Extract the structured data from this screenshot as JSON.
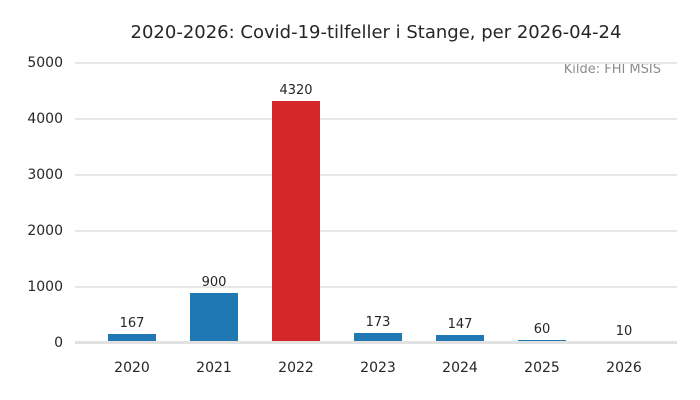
{
  "figure": {
    "title": "2020-2026: Covid-19-tilfeller i Stange, per 2026-04-24",
    "source": "Kilde: FHI MSIS"
  },
  "colors": {
    "bar_default": "#1f77b4",
    "bar_highlight": "#d62728",
    "grid": "#e7e7e7",
    "text": "#262626",
    "source_text": "#8c8c8c",
    "background": "#ffffff"
  },
  "chart_data": {
    "type": "bar",
    "title": "2020-2026: Covid-19-tilfeller i Stange, per 2026-04-24",
    "annotation": "Kilde: FHI MSIS",
    "categories": [
      "2020",
      "2021",
      "2022",
      "2023",
      "2024",
      "2025",
      "2026"
    ],
    "values": [
      167,
      900,
      4320,
      173,
      147,
      60,
      10
    ],
    "value_labels": [
      "167",
      "900",
      "4320",
      "173",
      "147",
      "60",
      "10"
    ],
    "bar_colors": [
      "#1f77b4",
      "#1f77b4",
      "#d62728",
      "#1f77b4",
      "#1f77b4",
      "#1f77b4",
      "#1f77b4"
    ],
    "highlight_index": 2,
    "xlabel": "",
    "ylabel": "",
    "y_ticks": [
      0,
      1000,
      2000,
      3000,
      4000,
      5000
    ],
    "ylim": [
      0,
      5000
    ],
    "grid": "horizontal",
    "legend": "none"
  }
}
